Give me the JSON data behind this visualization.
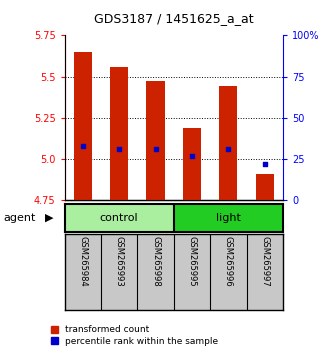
{
  "title": "GDS3187 / 1451625_a_at",
  "samples": [
    "GSM265984",
    "GSM265993",
    "GSM265998",
    "GSM265995",
    "GSM265996",
    "GSM265997"
  ],
  "groups": [
    "control",
    "control",
    "control",
    "light",
    "light",
    "light"
  ],
  "transformed_counts": [
    5.65,
    5.56,
    5.47,
    5.19,
    5.44,
    4.91
  ],
  "percentile_ranks": [
    33,
    31,
    31,
    27,
    31,
    22
  ],
  "ylim_left": [
    4.75,
    5.75
  ],
  "ylim_right": [
    0,
    100
  ],
  "yticks_left": [
    4.75,
    5.0,
    5.25,
    5.5,
    5.75
  ],
  "yticks_right": [
    0,
    25,
    50,
    75,
    100
  ],
  "ytick_labels_right": [
    "0",
    "25",
    "50",
    "75",
    "100%"
  ],
  "bar_bottom": 4.75,
  "bar_color": "#CC2200",
  "dot_color": "#0000CC",
  "bg_plot": "#FFFFFF",
  "bg_labels": "#C8C8C8",
  "control_color": "#AAEEA0",
  "light_color": "#22CC22",
  "title_fontsize": 9,
  "agent_label": "agent"
}
